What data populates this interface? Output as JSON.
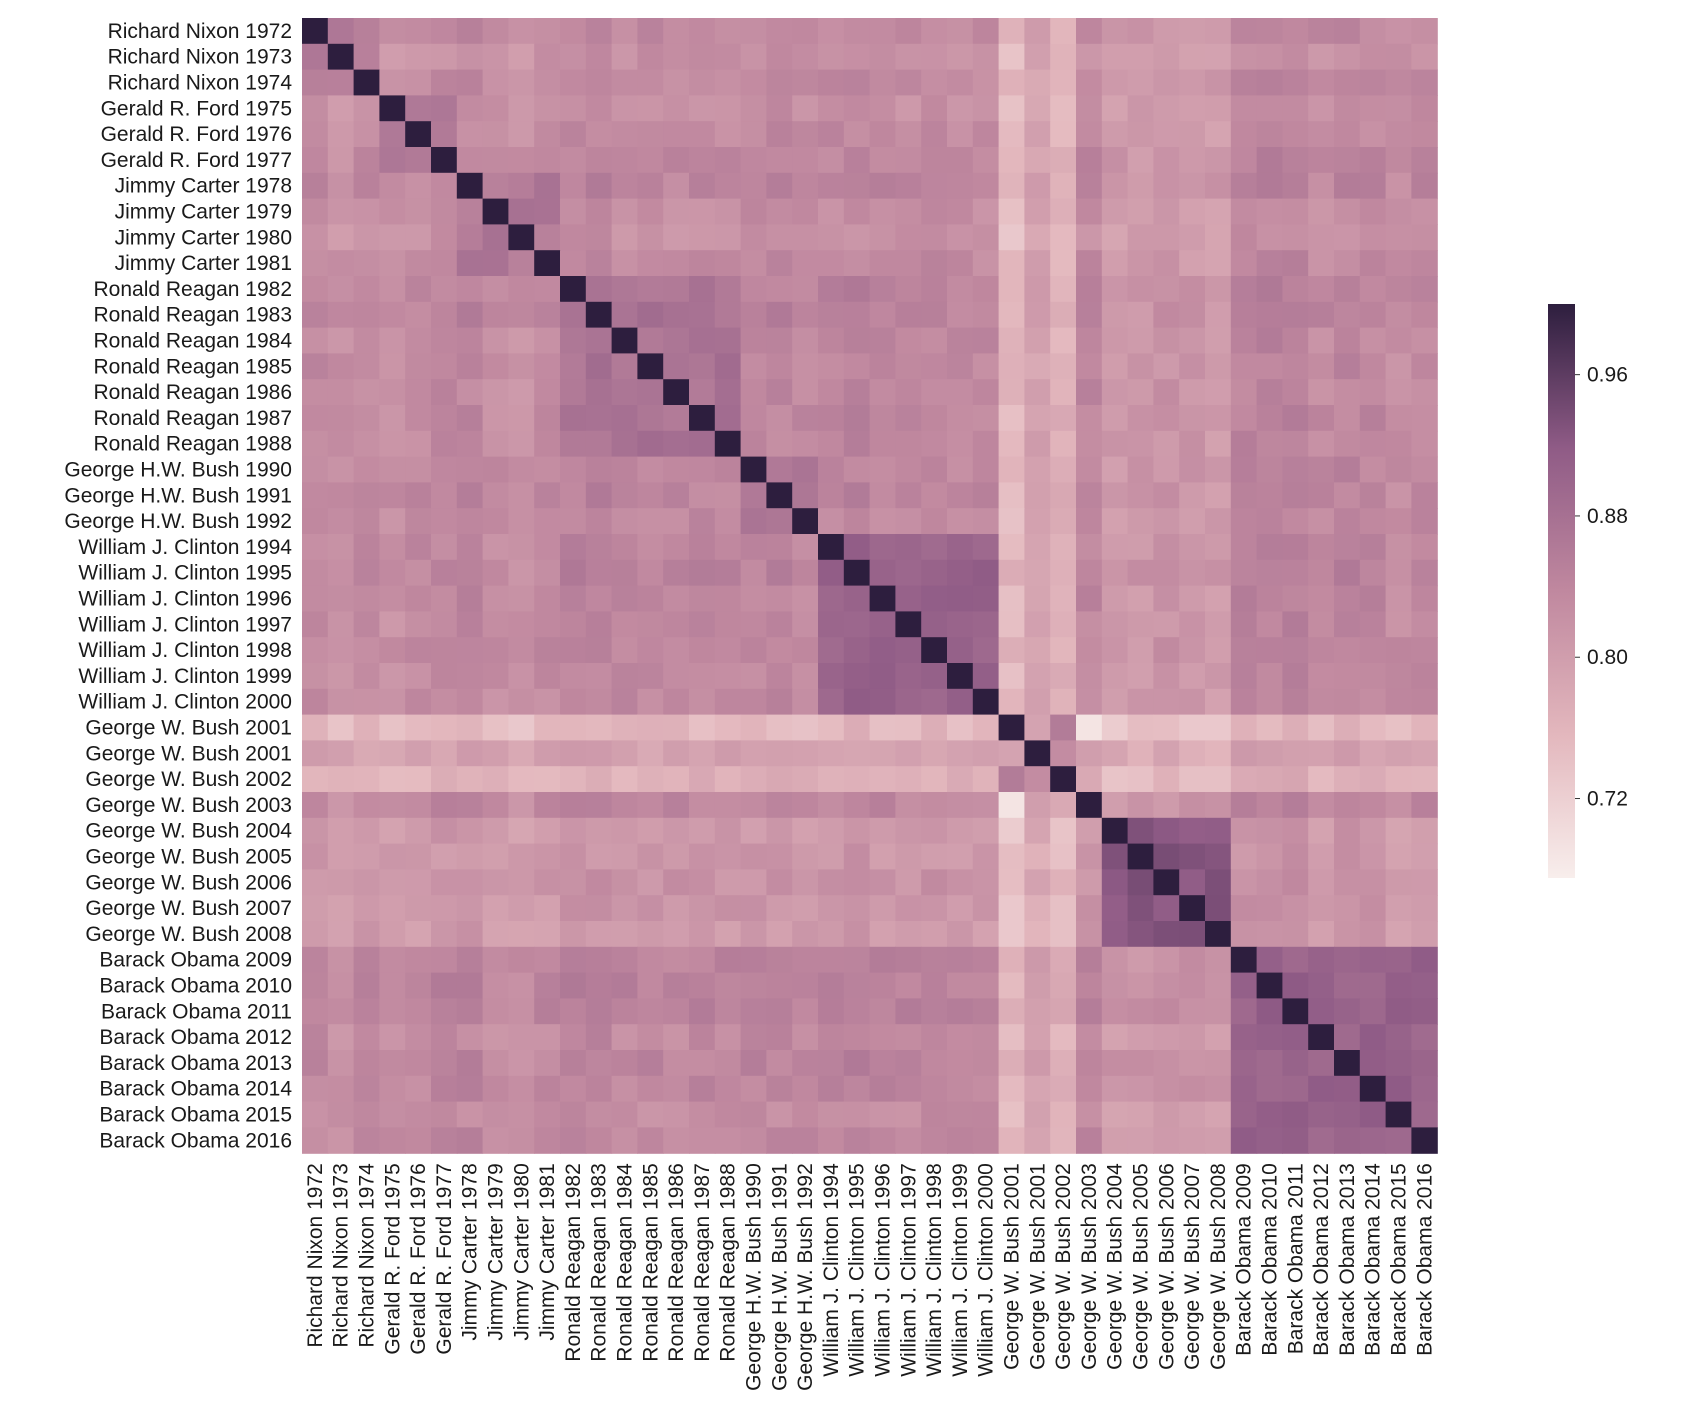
{
  "chart_data": {
    "type": "heatmap",
    "title": "",
    "xlabel": "",
    "ylabel": "",
    "labels": [
      "Richard Nixon 1972",
      "Richard Nixon 1973",
      "Richard Nixon 1974",
      "Gerald R. Ford 1975",
      "Gerald R. Ford 1976",
      "Gerald R. Ford 1977",
      "Jimmy Carter 1978",
      "Jimmy Carter 1979",
      "Jimmy Carter 1980",
      "Jimmy Carter 1981",
      "Ronald Reagan 1982",
      "Ronald Reagan 1983",
      "Ronald Reagan 1984",
      "Ronald Reagan 1985",
      "Ronald Reagan 1986",
      "Ronald Reagan 1987",
      "Ronald Reagan 1988",
      "George H.W. Bush 1990",
      "George H.W. Bush 1991",
      "George H.W. Bush 1992",
      "William J. Clinton 1994",
      "William J. Clinton 1995",
      "William J. Clinton 1996",
      "William J. Clinton 1997",
      "William J. Clinton 1998",
      "William J. Clinton 1999",
      "William J. Clinton 2000",
      "George W. Bush 2001",
      "George W. Bush 2001",
      "George W. Bush 2002",
      "George W. Bush 2003",
      "George W. Bush 2004",
      "George W. Bush 2005",
      "George W. Bush 2006",
      "George W. Bush 2007",
      "George W. Bush 2008",
      "Barack Obama 2009",
      "Barack Obama 2010",
      "Barack Obama 2011",
      "Barack Obama 2012",
      "Barack Obama 2013",
      "Barack Obama 2014",
      "Barack Obama 2015",
      "Barack Obama 2016"
    ],
    "groups": [
      {
        "start": 0,
        "end": 2,
        "base": 0.86
      },
      {
        "start": 3,
        "end": 5,
        "base": 0.865
      },
      {
        "start": 6,
        "end": 9,
        "base": 0.865
      },
      {
        "start": 10,
        "end": 16,
        "base": 0.875
      },
      {
        "start": 17,
        "end": 19,
        "base": 0.875
      },
      {
        "start": 20,
        "end": 26,
        "base": 0.905
      },
      {
        "start": 27,
        "end": 27,
        "base": 0.85
      },
      {
        "start": 28,
        "end": 28,
        "base": 0.85
      },
      {
        "start": 29,
        "end": 29,
        "base": 0.85
      },
      {
        "start": 30,
        "end": 30,
        "base": 0.85
      },
      {
        "start": 31,
        "end": 35,
        "base": 0.925
      },
      {
        "start": 36,
        "end": 43,
        "base": 0.905
      }
    ],
    "row_level": [
      0.835,
      0.815,
      0.835,
      0.815,
      0.83,
      0.84,
      0.845,
      0.82,
      0.81,
      0.83,
      0.85,
      0.855,
      0.835,
      0.835,
      0.835,
      0.84,
      0.835,
      0.84,
      0.845,
      0.83,
      0.845,
      0.855,
      0.84,
      0.835,
      0.85,
      0.835,
      0.835,
      0.7,
      0.765,
      0.72,
      0.84,
      0.79,
      0.79,
      0.805,
      0.795,
      0.785,
      0.855,
      0.865,
      0.87,
      0.83,
      0.85,
      0.845,
      0.82,
      0.84
    ],
    "cross_pairs": [
      {
        "a": 29,
        "b": 27,
        "value": 0.86
      },
      {
        "a": 29,
        "b": 28,
        "value": 0.83
      },
      {
        "a": 30,
        "b": 27,
        "value": 0.69
      },
      {
        "a": 27,
        "b": 28,
        "value": 0.79
      },
      {
        "a": 30,
        "b": 28,
        "value": 0.8
      },
      {
        "a": 30,
        "b": 29,
        "value": 0.78
      }
    ],
    "diagonal": 1.0,
    "colorbar": {
      "vmin": 0.675,
      "vmax": 1.0,
      "ticks": [
        "0.96",
        "0.88",
        "0.80",
        "0.72"
      ],
      "tick_values": [
        0.96,
        0.88,
        0.8,
        0.72
      ],
      "colormap": "cubehelix light (rose to dark purple)"
    }
  }
}
